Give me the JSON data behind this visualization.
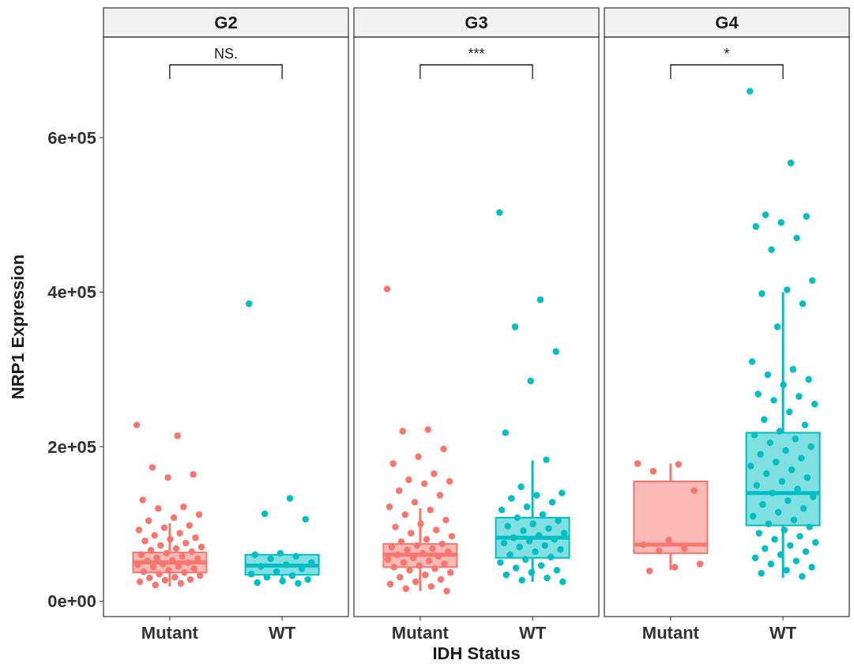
{
  "chart_data": [
    {
      "type": "box",
      "title": "G2",
      "ylabel": "NRP1 Expression",
      "categories": [
        "Mutant",
        "WT"
      ],
      "colors": [
        "#f8766d",
        "#00bfc4"
      ],
      "boxes": [
        {
          "low": 19000,
          "q1": 37000,
          "median": 50000,
          "q3": 63000,
          "high": 101000
        },
        {
          "low": 24000,
          "q1": 34000,
          "median": 46000,
          "q3": 60000,
          "high": 62000
        }
      ],
      "series": [
        {
          "type": "scatter",
          "color": "#f8766d",
          "x": [
            "Mutant",
            "Mutant",
            "Mutant",
            "Mutant",
            "Mutant",
            "Mutant",
            "Mutant",
            "Mutant",
            "Mutant",
            "Mutant",
            "Mutant",
            "Mutant",
            "Mutant",
            "Mutant",
            "Mutant",
            "Mutant",
            "Mutant",
            "Mutant",
            "Mutant",
            "Mutant",
            "Mutant",
            "Mutant",
            "Mutant",
            "Mutant",
            "Mutant",
            "Mutant",
            "Mutant",
            "Mutant",
            "Mutant",
            "Mutant",
            "Mutant",
            "Mutant",
            "Mutant",
            "Mutant",
            "Mutant",
            "Mutant",
            "Mutant",
            "Mutant",
            "Mutant",
            "Mutant",
            "Mutant",
            "Mutant",
            "Mutant",
            "Mutant",
            "Mutant",
            "Mutant",
            "Mutant",
            "Mutant",
            "Mutant",
            "Mutant"
          ],
          "values": [
            228000,
            214000,
            173000,
            164000,
            160000,
            131000,
            122000,
            120000,
            112000,
            108000,
            104000,
            98000,
            95000,
            92000,
            88000,
            85000,
            82000,
            80000,
            78000,
            75000,
            72000,
            70000,
            68000,
            66000,
            64000,
            62000,
            60000,
            58000,
            56000,
            55000,
            53000,
            52000,
            50000,
            48000,
            47000,
            45000,
            44000,
            42000,
            40000,
            38000,
            37000,
            35000,
            33000,
            31000,
            30000,
            28000,
            27000,
            25000,
            23000,
            21000
          ]
        },
        {
          "type": "scatter",
          "color": "#00bfc4",
          "x": [
            "WT",
            "WT",
            "WT",
            "WT",
            "WT",
            "WT",
            "WT",
            "WT",
            "WT",
            "WT",
            "WT",
            "WT",
            "WT",
            "WT",
            "WT",
            "WT",
            "WT",
            "WT",
            "WT",
            "WT"
          ],
          "values": [
            385000,
            133000,
            113000,
            106000,
            62000,
            60000,
            58000,
            55000,
            50000,
            47000,
            45000,
            42000,
            38000,
            35000,
            33000,
            31000,
            28000,
            26000,
            24000,
            23000
          ]
        }
      ],
      "annotations": [
        "NS."
      ],
      "ylim": [
        -20000,
        730000
      ],
      "yticks": [
        {
          "value": 0,
          "label": "0e+00"
        },
        {
          "value": 200000,
          "label": "2e+05"
        },
        {
          "value": 400000,
          "label": "4e+05"
        },
        {
          "value": 600000,
          "label": "6e+05"
        }
      ],
      "grid": false,
      "marker": "circle"
    },
    {
      "type": "box",
      "title": "G3",
      "xlabel": "IDH Status",
      "categories": [
        "Mutant",
        "WT"
      ],
      "colors": [
        "#f8766d",
        "#00bfc4"
      ],
      "boxes": [
        {
          "low": 13000,
          "q1": 44000,
          "median": 60000,
          "q3": 74000,
          "high": 120000
        },
        {
          "low": 25000,
          "q1": 56000,
          "median": 82000,
          "q3": 108000,
          "high": 182000
        }
      ],
      "series": [
        {
          "type": "scatter",
          "color": "#f8766d",
          "x": [
            "Mutant",
            "Mutant",
            "Mutant",
            "Mutant",
            "Mutant",
            "Mutant",
            "Mutant",
            "Mutant",
            "Mutant",
            "Mutant",
            "Mutant",
            "Mutant",
            "Mutant",
            "Mutant",
            "Mutant",
            "Mutant",
            "Mutant",
            "Mutant",
            "Mutant",
            "Mutant",
            "Mutant",
            "Mutant",
            "Mutant",
            "Mutant",
            "Mutant",
            "Mutant",
            "Mutant",
            "Mutant",
            "Mutant",
            "Mutant",
            "Mutant",
            "Mutant",
            "Mutant",
            "Mutant",
            "Mutant",
            "Mutant",
            "Mutant",
            "Mutant",
            "Mutant",
            "Mutant",
            "Mutant",
            "Mutant",
            "Mutant",
            "Mutant",
            "Mutant",
            "Mutant",
            "Mutant",
            "Mutant",
            "Mutant",
            "Mutant",
            "Mutant"
          ],
          "values": [
            404000,
            222000,
            220000,
            197000,
            187000,
            178000,
            165000,
            157000,
            155000,
            152000,
            143000,
            137000,
            128000,
            122000,
            118000,
            112000,
            105000,
            100000,
            96000,
            92000,
            88000,
            84000,
            80000,
            77000,
            74000,
            72000,
            70000,
            68000,
            66000,
            64000,
            62000,
            60000,
            58000,
            56000,
            54000,
            52000,
            50000,
            48000,
            46000,
            44000,
            42000,
            40000,
            37000,
            34000,
            31000,
            28000,
            25000,
            22000,
            19000,
            16000,
            13000
          ]
        },
        {
          "type": "scatter",
          "color": "#00bfc4",
          "x": [
            "WT",
            "WT",
            "WT",
            "WT",
            "WT",
            "WT",
            "WT",
            "WT",
            "WT",
            "WT",
            "WT",
            "WT",
            "WT",
            "WT",
            "WT",
            "WT",
            "WT",
            "WT",
            "WT",
            "WT",
            "WT",
            "WT",
            "WT",
            "WT",
            "WT",
            "WT",
            "WT",
            "WT",
            "WT",
            "WT",
            "WT",
            "WT",
            "WT",
            "WT",
            "WT",
            "WT",
            "WT",
            "WT",
            "WT",
            "WT",
            "WT",
            "WT",
            "WT"
          ],
          "values": [
            503000,
            390000,
            355000,
            323000,
            285000,
            218000,
            183000,
            148000,
            140000,
            137000,
            133000,
            128000,
            122000,
            118000,
            112000,
            108000,
            104000,
            100000,
            97000,
            94000,
            91000,
            88000,
            85000,
            82000,
            80000,
            78000,
            75000,
            72000,
            70000,
            67000,
            64000,
            60000,
            57000,
            54000,
            50000,
            46000,
            43000,
            40000,
            37000,
            34000,
            30000,
            27000,
            25000
          ]
        }
      ],
      "annotations": [
        "***"
      ],
      "ylim": [
        -20000,
        730000
      ],
      "tick_labels": "x",
      "grid": false,
      "marker": "circle"
    },
    {
      "type": "box",
      "title": "G4",
      "categories": [
        "Mutant",
        "WT"
      ],
      "colors": [
        "#f8766d",
        "#00bfc4"
      ],
      "boxes": [
        {
          "low": 40000,
          "q1": 62000,
          "median": 73000,
          "q3": 155000,
          "high": 178000
        },
        {
          "low": 30000,
          "q1": 98000,
          "median": 140000,
          "q3": 218000,
          "high": 400000
        }
      ],
      "series": [
        {
          "type": "scatter",
          "color": "#f8766d",
          "x": [
            "Mutant",
            "Mutant",
            "Mutant",
            "Mutant",
            "Mutant",
            "Mutant",
            "Mutant",
            "Mutant",
            "Mutant",
            "Mutant",
            "Mutant"
          ],
          "values": [
            178000,
            177000,
            168000,
            143000,
            79000,
            73000,
            68000,
            65000,
            48000,
            44000,
            39000
          ]
        },
        {
          "type": "scatter",
          "color": "#00bfc4",
          "x": [
            "WT",
            "WT",
            "WT",
            "WT",
            "WT",
            "WT",
            "WT",
            "WT",
            "WT",
            "WT",
            "WT",
            "WT",
            "WT",
            "WT",
            "WT",
            "WT",
            "WT",
            "WT",
            "WT",
            "WT",
            "WT",
            "WT",
            "WT",
            "WT",
            "WT",
            "WT",
            "WT",
            "WT",
            "WT",
            "WT",
            "WT",
            "WT",
            "WT",
            "WT",
            "WT",
            "WT",
            "WT",
            "WT",
            "WT",
            "WT",
            "WT",
            "WT",
            "WT",
            "WT",
            "WT",
            "WT",
            "WT",
            "WT",
            "WT",
            "WT",
            "WT",
            "WT",
            "WT",
            "WT",
            "WT",
            "WT",
            "WT",
            "WT",
            "WT",
            "WT",
            "WT",
            "WT",
            "WT",
            "WT",
            "WT",
            "WT",
            "WT"
          ],
          "values": [
            660000,
            567000,
            500000,
            498000,
            490000,
            485000,
            470000,
            455000,
            415000,
            403000,
            398000,
            385000,
            355000,
            310000,
            300000,
            293000,
            287000,
            280000,
            268000,
            265000,
            260000,
            255000,
            245000,
            235000,
            228000,
            220000,
            215000,
            210000,
            205000,
            200000,
            195000,
            190000,
            185000,
            180000,
            175000,
            170000,
            165000,
            160000,
            155000,
            150000,
            145000,
            140000,
            135000,
            130000,
            125000,
            120000,
            115000,
            110000,
            105000,
            100000,
            96000,
            92000,
            88000,
            84000,
            80000,
            76000,
            72000,
            68000,
            64000,
            60000,
            56000,
            52000,
            48000,
            44000,
            40000,
            36000,
            32000
          ]
        }
      ],
      "annotations": [
        "*"
      ],
      "ylim": [
        -20000,
        730000
      ],
      "tick_labels": "x",
      "grid": false,
      "marker": "circle"
    }
  ]
}
